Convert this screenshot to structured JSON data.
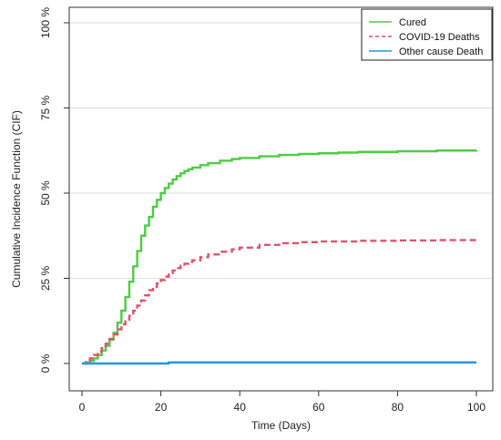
{
  "chart_data": {
    "type": "line",
    "xlabel": "Time (Days)",
    "ylabel": "Cumulative Incidence Function (CIF)",
    "xlim": [
      0,
      100
    ],
    "ylim": [
      0,
      100
    ],
    "x_ticks": [
      "0",
      "20",
      "40",
      "60",
      "80",
      "100"
    ],
    "y_ticks": [
      "0 %",
      "25 %",
      "50 %",
      "75 %",
      "100 %"
    ],
    "grid": "horizontal",
    "legend_position": "top-right",
    "series": [
      {
        "name": "Cured",
        "color": "#4fcc45",
        "style": "solid",
        "step": true,
        "x": [
          0,
          1,
          2,
          3,
          4,
          5,
          6,
          7,
          8,
          9,
          10,
          11,
          12,
          13,
          14,
          15,
          16,
          17,
          18,
          19,
          20,
          21,
          22,
          23,
          24,
          25,
          26,
          27,
          28,
          30,
          32,
          35,
          38,
          40,
          45,
          50,
          55,
          60,
          65,
          70,
          80,
          90,
          100
        ],
        "y": [
          0,
          0.3,
          0.8,
          1.5,
          2.5,
          3.8,
          5.2,
          7.0,
          9.0,
          12.0,
          15.5,
          19.5,
          24.0,
          28.5,
          33.0,
          37.5,
          40.5,
          43.0,
          46.0,
          48.0,
          50.0,
          51.5,
          52.8,
          54.0,
          55.0,
          55.8,
          56.5,
          57.0,
          57.5,
          58.2,
          58.8,
          59.5,
          60.0,
          60.3,
          60.8,
          61.2,
          61.5,
          61.7,
          61.9,
          62.1,
          62.3,
          62.5,
          62.6
        ]
      },
      {
        "name": "COVID-19 Deaths",
        "color": "#df536b",
        "style": "dashed",
        "step": true,
        "x": [
          0,
          1,
          2,
          3,
          4,
          5,
          6,
          7,
          8,
          9,
          10,
          11,
          12,
          13,
          14,
          15,
          16,
          17,
          18,
          19,
          20,
          21,
          22,
          23,
          24,
          25,
          26,
          27,
          28,
          30,
          32,
          35,
          38,
          40,
          45,
          50,
          55,
          60,
          70,
          80,
          90,
          100
        ],
        "y": [
          0,
          0.8,
          1.5,
          2.5,
          3.5,
          4.5,
          5.8,
          7.2,
          8.5,
          10.0,
          11.5,
          12.8,
          14.0,
          15.5,
          17.0,
          18.5,
          20.0,
          21.5,
          22.5,
          23.5,
          24.5,
          25.5,
          26.5,
          27.3,
          28.0,
          28.7,
          29.3,
          29.8,
          30.3,
          31.2,
          32.0,
          32.8,
          33.5,
          34.0,
          34.8,
          35.3,
          35.6,
          35.8,
          36.0,
          36.1,
          36.2,
          36.3
        ]
      },
      {
        "name": "Other cause Death",
        "color": "#2297e6",
        "style": "solid",
        "step": true,
        "x": [
          0,
          22,
          100
        ],
        "y": [
          0,
          0.3,
          0.3
        ]
      }
    ]
  }
}
